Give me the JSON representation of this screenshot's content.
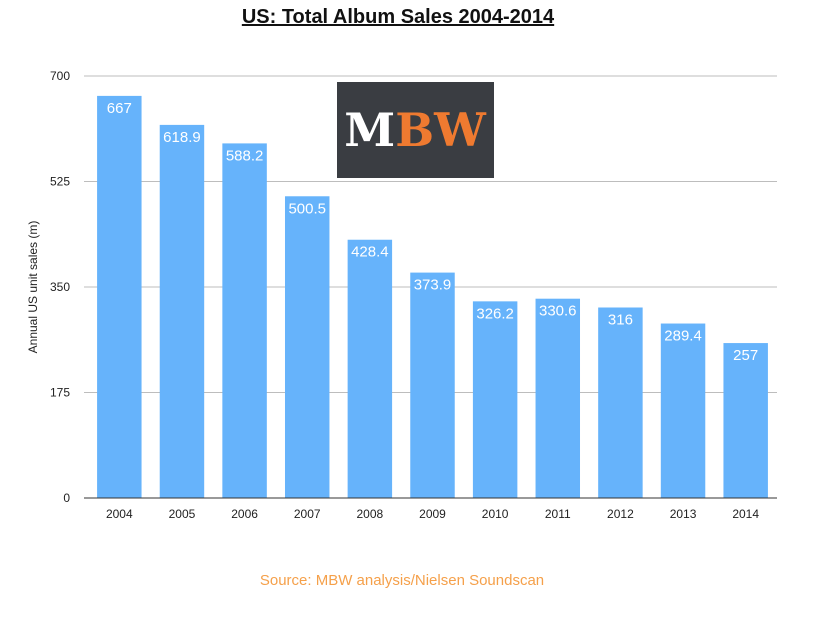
{
  "colors": {
    "bar": "#66b3fb",
    "grid": "#bdbdbd",
    "axis": "#333333",
    "logo_bg": "#3a3d42",
    "logo_m": "#ffffff",
    "logo_bw": "#ef7a30",
    "source": "#f5a04a"
  },
  "logo": {
    "m": "M",
    "bw": "BW"
  },
  "source_note": "Source: MBW analysis/Nielsen Soundscan",
  "chart_data": {
    "type": "bar",
    "title": "US: Total Album Sales 2004-2014",
    "xlabel": "",
    "ylabel": "Annual US unit sales (m)",
    "categories": [
      "2004",
      "2005",
      "2006",
      "2007",
      "2008",
      "2009",
      "2010",
      "2011",
      "2012",
      "2013",
      "2014"
    ],
    "values": [
      667,
      618.9,
      588.2,
      500.5,
      428.4,
      373.9,
      326.2,
      330.6,
      316,
      289.4,
      257
    ],
    "value_labels": [
      "667",
      "618.9",
      "588.2",
      "500.5",
      "428.4",
      "373.9",
      "326.2",
      "330.6",
      "316",
      "289.4",
      "257"
    ],
    "ylim": [
      0,
      700
    ],
    "yticks": [
      0,
      175,
      350,
      525,
      700
    ],
    "ytick_labels": [
      "0",
      "175",
      "350",
      "525",
      "700"
    ],
    "grid": true,
    "legend": "none"
  }
}
